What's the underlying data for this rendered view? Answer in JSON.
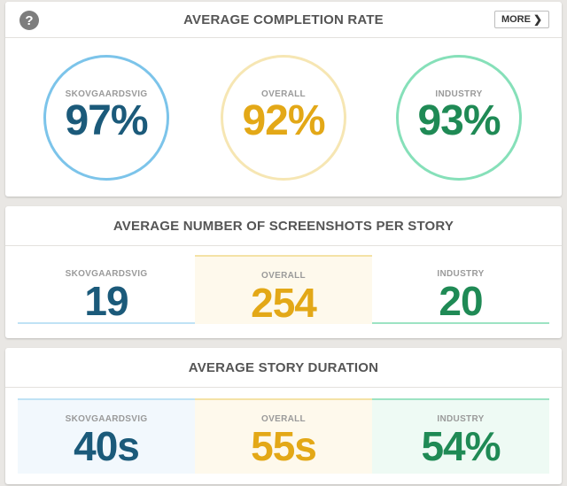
{
  "colors": {
    "blue": "#1b5a7a",
    "blue_ring": "#7cc4ea",
    "gold": "#e3a817",
    "gold_ring": "#f6e6b3",
    "green": "#1f8a55",
    "green_ring": "#86e0b9",
    "blue_bg": "#f2f8fd",
    "gold_bg": "#fef9ec",
    "green_bg": "#eefaf4"
  },
  "completion": {
    "title": "AVERAGE COMPLETION RATE",
    "help_icon": "question-icon",
    "more_label": "MORE",
    "more_icon": "chevron-right-icon",
    "items": [
      {
        "label": "SKOVGAARDSVIG",
        "value": "97%"
      },
      {
        "label": "OVERALL",
        "value": "92%"
      },
      {
        "label": "INDUSTRY",
        "value": "93%"
      }
    ]
  },
  "screenshots": {
    "title": "AVERAGE NUMBER OF SCREENSHOTS PER STORY",
    "items": [
      {
        "label": "SKOVGAARDSVIG",
        "value": "19"
      },
      {
        "label": "OVERALL",
        "value": "254"
      },
      {
        "label": "INDUSTRY",
        "value": "20"
      }
    ]
  },
  "duration": {
    "title": "AVERAGE STORY DURATION",
    "items": [
      {
        "label": "SKOVGAARDSVIG",
        "value": "40s"
      },
      {
        "label": "OVERALL",
        "value": "55s"
      },
      {
        "label": "INDUSTRY",
        "value": "54%"
      }
    ]
  }
}
